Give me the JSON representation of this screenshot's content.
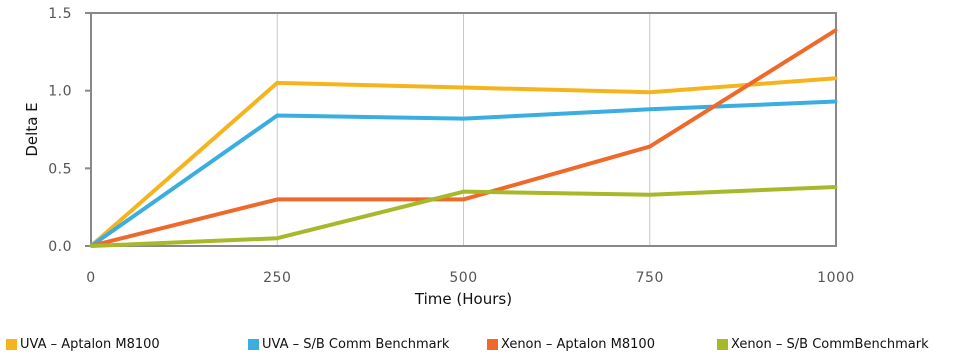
{
  "chart_data": {
    "type": "line",
    "xlabel": "Time (Hours)",
    "ylabel": "Delta E",
    "x": [
      0,
      250,
      500,
      750,
      1000
    ],
    "x_tick_labels": [
      "0",
      "250",
      "500",
      "750",
      "1000"
    ],
    "y_tick_labels": [
      "0.0",
      "0.5",
      "1.0",
      "1.5"
    ],
    "xlim": [
      0,
      1000
    ],
    "ylim": [
      0,
      1.5
    ],
    "grid": "vertical",
    "legend_position": "bottom",
    "series": [
      {
        "name": "UVA – Aptalon M8100",
        "color": "#f5b41d",
        "values": [
          0.0,
          1.05,
          1.02,
          0.99,
          1.08
        ]
      },
      {
        "name": "UVA – S/B Comm Benchmark",
        "color": "#3aaee0",
        "values": [
          0.0,
          0.84,
          0.82,
          0.88,
          0.93
        ]
      },
      {
        "name": "Xenon – Aptalon M8100",
        "color": "#ef6a2a",
        "values": [
          0.0,
          0.3,
          0.3,
          0.64,
          1.39
        ]
      },
      {
        "name": "Xenon – S/B CommBenchmark",
        "color": "#a7b829",
        "values": [
          0.0,
          0.05,
          0.35,
          0.33,
          0.38
        ]
      }
    ]
  }
}
